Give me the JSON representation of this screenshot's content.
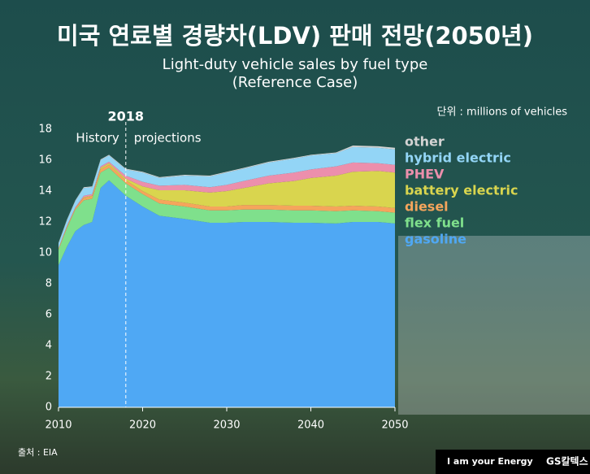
{
  "chart_data": {
    "type": "stacked-area",
    "title": "미국 연료별 경량차(LDV) 판매 전망(2050년)",
    "subtitle": "Light-duty vehicle sales by fuel type",
    "subtitle2": "(Reference Case)",
    "unit_note": "단위 : millions of vehicles",
    "annotations": {
      "divider": {
        "value": 2018,
        "label": "2018"
      },
      "left": "History",
      "right": "projections"
    },
    "source": "출처 : EIA",
    "footer": {
      "slogan": "I am your Energy",
      "brand": "GS칼텍스"
    },
    "x": [
      2010,
      2011,
      2012,
      2013,
      2014,
      2015,
      2016,
      2017,
      2018,
      2020,
      2022,
      2025,
      2028,
      2030,
      2032,
      2035,
      2038,
      2040,
      2043,
      2045,
      2048,
      2050
    ],
    "series": [
      {
        "name": "gasoline",
        "color": "#4fa8f4",
        "values": [
          9.2,
          10.4,
          11.4,
          11.8,
          12.0,
          14.2,
          14.7,
          14.2,
          13.7,
          13.0,
          12.4,
          12.2,
          11.95,
          11.95,
          12.0,
          12.0,
          11.95,
          11.95,
          11.9,
          12.0,
          12.0,
          11.9
        ]
      },
      {
        "name": "flex fuel",
        "color": "#7fe08c",
        "values": [
          1.0,
          1.2,
          1.4,
          1.6,
          1.5,
          1.0,
          0.8,
          0.8,
          0.8,
          0.8,
          0.8,
          0.8,
          0.8,
          0.8,
          0.8,
          0.8,
          0.8,
          0.8,
          0.8,
          0.75,
          0.7,
          0.7
        ]
      },
      {
        "name": "diesel",
        "color": "#f5a55c",
        "values": [
          0.1,
          0.1,
          0.1,
          0.15,
          0.15,
          0.2,
          0.2,
          0.2,
          0.2,
          0.2,
          0.25,
          0.25,
          0.25,
          0.25,
          0.3,
          0.3,
          0.3,
          0.3,
          0.3,
          0.3,
          0.3,
          0.3
        ]
      },
      {
        "name": "battery electric",
        "color": "#d9d54e",
        "values": [
          0,
          0,
          0,
          0.05,
          0.05,
          0.1,
          0.1,
          0.1,
          0.1,
          0.3,
          0.6,
          0.8,
          0.9,
          1.0,
          1.1,
          1.4,
          1.6,
          1.8,
          2.0,
          2.2,
          2.3,
          2.3
        ]
      },
      {
        "name": "PHEV",
        "color": "#ec8fac",
        "values": [
          0,
          0.05,
          0.05,
          0.1,
          0.1,
          0.1,
          0.1,
          0.15,
          0.2,
          0.3,
          0.3,
          0.35,
          0.35,
          0.4,
          0.45,
          0.5,
          0.55,
          0.55,
          0.6,
          0.6,
          0.5,
          0.5
        ]
      },
      {
        "name": "hybrid electric",
        "color": "#93d5f6",
        "values": [
          0.3,
          0.35,
          0.4,
          0.5,
          0.45,
          0.4,
          0.4,
          0.4,
          0.4,
          0.6,
          0.5,
          0.6,
          0.7,
          0.8,
          0.8,
          0.85,
          0.9,
          0.9,
          0.85,
          1.0,
          1.0,
          1.0
        ]
      },
      {
        "name": "other",
        "color": "#d3d3d3",
        "values": [
          0.05,
          0.05,
          0.05,
          0.05,
          0.05,
          0.05,
          0.05,
          0.05,
          0.05,
          0.05,
          0.05,
          0.05,
          0.05,
          0.05,
          0.05,
          0.05,
          0.05,
          0.05,
          0.05,
          0.1,
          0.1,
          0.1
        ]
      }
    ],
    "xlim": [
      2010,
      2050
    ],
    "xticks": [
      2010,
      2020,
      2030,
      2040,
      2050
    ],
    "ylim": [
      0,
      18
    ],
    "yticks": [
      0,
      2,
      4,
      6,
      8,
      10,
      12,
      14,
      16,
      18
    ],
    "grid": false,
    "legend": "right"
  }
}
